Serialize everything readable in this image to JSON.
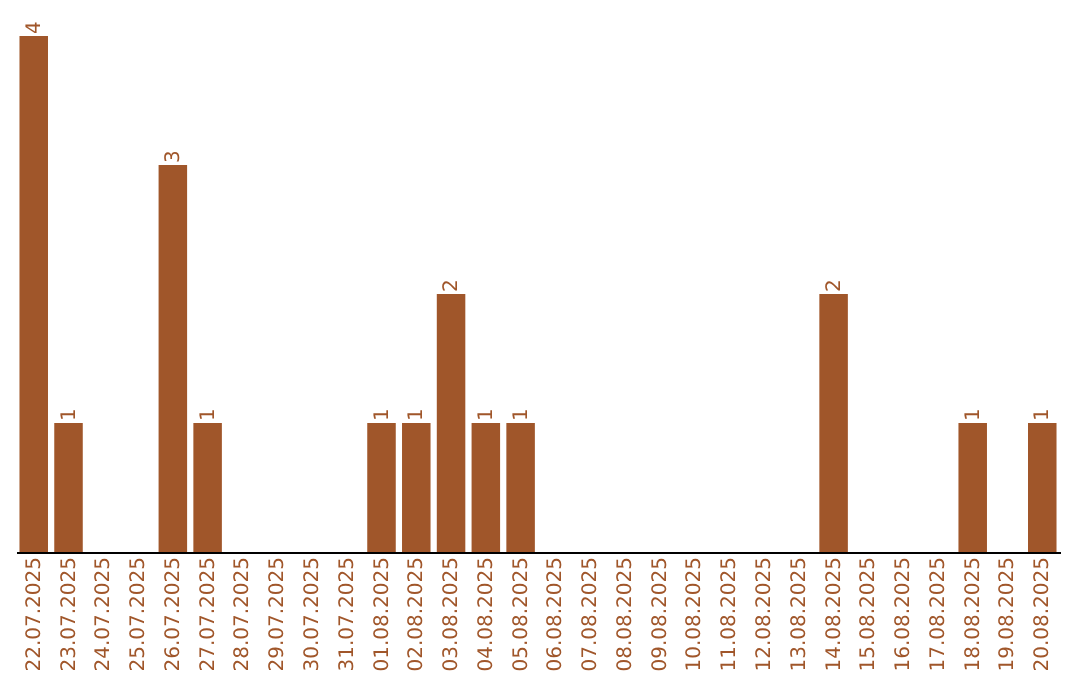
{
  "chart_data": {
    "type": "bar",
    "categories": [
      "22.07.2025",
      "23.07.2025",
      "24.07.2025",
      "25.07.2025",
      "26.07.2025",
      "27.07.2025",
      "28.07.2025",
      "29.07.2025",
      "30.07.2025",
      "31.07.2025",
      "01.08.2025",
      "02.08.2025",
      "03.08.2025",
      "04.08.2025",
      "05.08.2025",
      "06.08.2025",
      "07.08.2025",
      "08.08.2025",
      "09.08.2025",
      "10.08.2025",
      "11.08.2025",
      "12.08.2025",
      "13.08.2025",
      "14.08.2025",
      "15.08.2025",
      "16.08.2025",
      "17.08.2025",
      "18.08.2025",
      "19.08.2025",
      "20.08.2025"
    ],
    "values": [
      4,
      1,
      0,
      0,
      3,
      1,
      0,
      0,
      0,
      0,
      1,
      1,
      2,
      1,
      1,
      0,
      0,
      0,
      0,
      0,
      0,
      0,
      0,
      2,
      0,
      0,
      0,
      1,
      0,
      1
    ],
    "value_labels": [
      "4",
      "1",
      null,
      null,
      "3",
      "1",
      null,
      null,
      null,
      null,
      "1",
      "1",
      "2",
      "1",
      "1",
      null,
      null,
      null,
      null,
      null,
      null,
      null,
      null,
      "2",
      null,
      null,
      null,
      "1",
      null,
      "1"
    ],
    "color": "#a0562a",
    "grid": false,
    "tick_labels": "x"
  }
}
